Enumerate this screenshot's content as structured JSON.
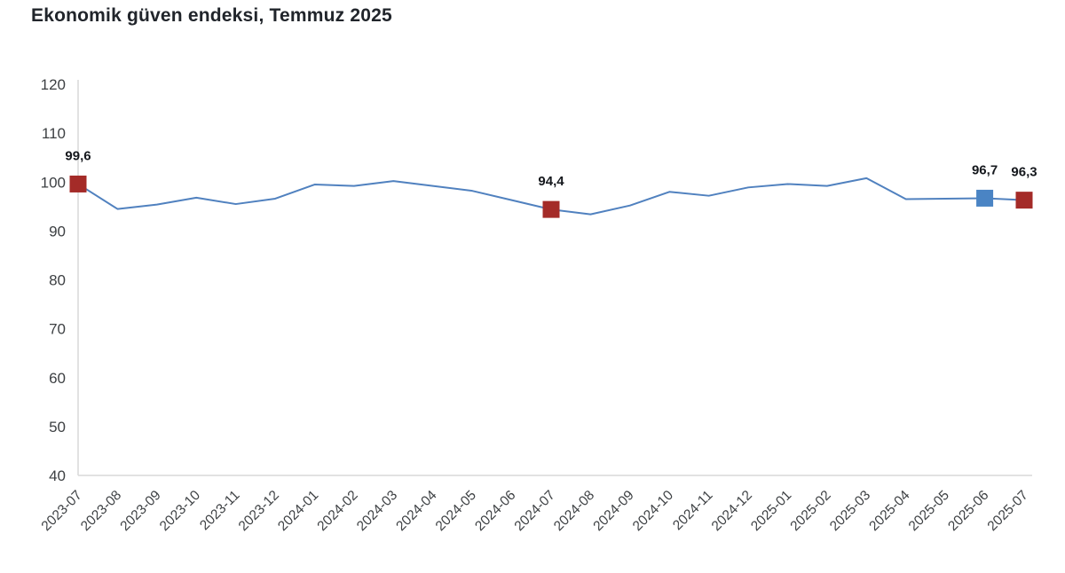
{
  "title": "Ekonomik güven endeksi, Temmuz 2025",
  "chart_data": {
    "type": "line",
    "title": "Ekonomik güven endeksi, Temmuz 2025",
    "categories": [
      "2023-07",
      "2023-08",
      "2023-09",
      "2023-10",
      "2023-11",
      "2023-12",
      "2024-01",
      "2024-02",
      "2024-03",
      "2024-04",
      "2024-05",
      "2024-06",
      "2024-07",
      "2024-08",
      "2024-09",
      "2024-10",
      "2024-11",
      "2024-12",
      "2025-01",
      "2025-02",
      "2025-03",
      "2025-04",
      "2025-05",
      "2025-06",
      "2025-07"
    ],
    "series": [
      {
        "name": "Ekonomik güven endeksi",
        "values": [
          99.6,
          94.5,
          95.4,
          96.8,
          95.5,
          96.6,
          99.5,
          99.2,
          100.2,
          99.2,
          98.2,
          96.3,
          94.4,
          93.4,
          95.2,
          98.0,
          97.2,
          98.9,
          99.6,
          99.2,
          100.8,
          96.5,
          96.6,
          96.7,
          96.3
        ]
      }
    ],
    "ylim": [
      40,
      120
    ],
    "y_ticks": [
      40,
      50,
      60,
      70,
      80,
      90,
      100,
      110,
      120
    ],
    "grid": false,
    "legend": "none",
    "line_color": "#5081bf",
    "axis_color": "#d9d9d9",
    "highlights": [
      {
        "category": "2023-07",
        "value": 99.6,
        "label": "99,6",
        "marker_color": "#a42b28"
      },
      {
        "category": "2024-07",
        "value": 94.4,
        "label": "94,4",
        "marker_color": "#a42b28"
      },
      {
        "category": "2025-06",
        "value": 96.7,
        "label": "96,7",
        "marker_color": "#4a84c4"
      },
      {
        "category": "2025-07",
        "value": 96.3,
        "label": "96,3",
        "marker_color": "#a42b28"
      }
    ]
  }
}
